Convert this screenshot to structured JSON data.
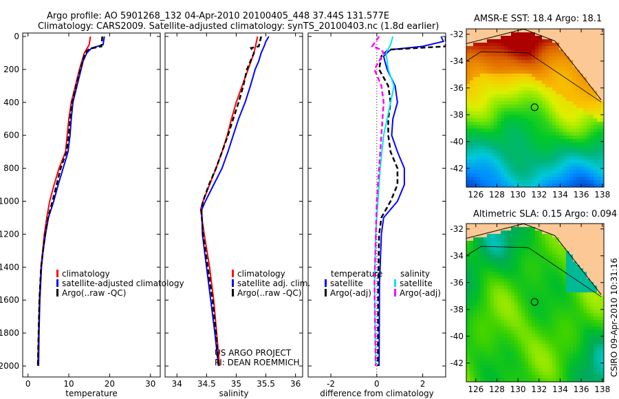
{
  "header": {
    "line1": "Argo profile: AO 5901268_132 04-Apr-2010 20100405_448 37.44S 131.577E",
    "line2": "Climatology: CARS2009. Satellite-adjusted climatology: synTS_20100403.nc (1.8d earlier)"
  },
  "credit_project": "US ARGO PROJECT",
  "credit_pi": "PI: DEAN ROEMMICH",
  "credit_csiro": "CSIRO 09-Apr-2010 10:31:16",
  "colors": {
    "climatology": "#ff0000",
    "satellite": "#0000ff",
    "argo": "#000000",
    "sal_satellite": "#00e5ee",
    "sal_argo": "#ff00ff",
    "land": "#fcc896"
  },
  "chart_data": [
    {
      "type": "line",
      "xlabel": "temperature",
      "ylabel": "depth",
      "xlim": [
        -1.3,
        32.4
      ],
      "ylim": [
        2065,
        0
      ],
      "xticks": [
        "0",
        "10",
        "20",
        "30"
      ],
      "xtick_values": [
        0,
        10,
        20,
        30
      ],
      "yticks": [
        "0",
        "200",
        "400",
        "600",
        "800",
        "1000",
        "1200",
        "1400",
        "1600",
        "1800",
        "2000"
      ],
      "ytick_values": [
        0,
        200,
        400,
        600,
        800,
        1000,
        1200,
        1400,
        1600,
        1800,
        2000
      ],
      "legend": [
        "climatology",
        "satellite-adjusted climatology",
        "Argo(..raw -QC)"
      ],
      "series": [
        {
          "name": "climatology",
          "color": "#ff0000",
          "dash": false,
          "depth": [
            0,
            50,
            100,
            200,
            300,
            400,
            500,
            600,
            700,
            800,
            900,
            1000,
            1100,
            1200,
            1300,
            1400,
            1600,
            1800,
            2000
          ],
          "values": [
            15.3,
            15.0,
            13.8,
            12.6,
            11.6,
            10.6,
            10.0,
            9.6,
            9.2,
            7.6,
            6.4,
            5.3,
            4.6,
            4.0,
            3.6,
            3.2,
            2.8,
            2.6,
            2.4
          ]
        },
        {
          "name": "satellite-adjusted climatology",
          "color": "#0000ff",
          "dash": false,
          "depth": [
            0,
            50,
            70,
            100,
            150,
            200,
            300,
            400,
            500,
            600,
            700,
            800,
            900,
            1000,
            1100,
            1200,
            1300,
            1400,
            1600,
            1800,
            2000
          ],
          "values": [
            18.7,
            18.4,
            15.6,
            14.4,
            13.5,
            13.0,
            12.0,
            11.0,
            10.6,
            10.3,
            9.8,
            8.6,
            7.4,
            6.3,
            5.0,
            4.3,
            3.7,
            3.3,
            2.9,
            2.7,
            2.6
          ]
        },
        {
          "name": "Argo(..raw -QC)",
          "color": "#000000",
          "dash": true,
          "depth": [
            0,
            60,
            75,
            100,
            200,
            300,
            400,
            500,
            600,
            700,
            800,
            900,
            1000,
            1100,
            1200,
            1400,
            1600,
            1800,
            2000
          ],
          "values": [
            18.2,
            18.0,
            15.0,
            14.0,
            12.8,
            11.8,
            10.8,
            10.3,
            10.0,
            9.4,
            8.0,
            7.0,
            6.0,
            4.9,
            4.2,
            3.2,
            2.8,
            2.6,
            2.4
          ]
        }
      ]
    },
    {
      "type": "line",
      "xlabel": "salinity",
      "xlim": [
        33.8,
        36.12
      ],
      "ylim": [
        2065,
        0
      ],
      "xticks": [
        "34",
        "34.5",
        "35",
        "35.5",
        "36"
      ],
      "xtick_values": [
        34,
        34.5,
        35,
        35.5,
        36
      ],
      "legend": [
        "climatology",
        "satellite adj. clim.",
        "Argo(..raw -QC)"
      ],
      "series": [
        {
          "name": "climatology",
          "color": "#ff0000",
          "dash": false,
          "depth": [
            0,
            100,
            200,
            300,
            400,
            500,
            600,
            700,
            800,
            900,
            1000,
            1050,
            1200,
            1400,
            1600,
            1800,
            2000
          ],
          "values": [
            35.36,
            35.3,
            35.2,
            35.1,
            35.0,
            34.92,
            34.85,
            34.76,
            34.66,
            34.55,
            34.44,
            34.4,
            34.46,
            34.55,
            34.62,
            34.67,
            34.72
          ]
        },
        {
          "name": "satellite adj. clim.",
          "color": "#0000ff",
          "dash": false,
          "depth": [
            0,
            30,
            60,
            100,
            150,
            200,
            300,
            400,
            500,
            600,
            700,
            800,
            900,
            1000,
            1050,
            1200,
            1400,
            1600,
            1800,
            2000
          ],
          "values": [
            35.55,
            35.5,
            35.47,
            35.42,
            35.38,
            35.32,
            35.24,
            35.15,
            35.04,
            34.95,
            34.86,
            34.76,
            34.62,
            34.48,
            34.42,
            34.43,
            34.5,
            34.57,
            34.64,
            34.7
          ]
        },
        {
          "name": "Argo(..raw -QC)",
          "color": "#000000",
          "dash": true,
          "depth": [
            0,
            60,
            70,
            100,
            200,
            300,
            400,
            500,
            600,
            700,
            800,
            900,
            1000,
            1050,
            1200,
            1400,
            1600,
            1800,
            2000
          ],
          "values": [
            35.42,
            35.38,
            35.25,
            35.3,
            35.18,
            35.12,
            35.04,
            34.95,
            34.86,
            34.76,
            34.66,
            34.54,
            34.44,
            34.41,
            34.44,
            34.52,
            34.6,
            34.66,
            34.7
          ]
        }
      ]
    },
    {
      "type": "line",
      "xlabel": "difference from climatology",
      "xlim": [
        -2.99,
        3.0
      ],
      "ylim": [
        2065,
        0
      ],
      "xticks": [
        "-2",
        "0",
        "2"
      ],
      "xtick_values": [
        -2,
        0,
        2
      ],
      "legend_temperature_title": "temperature",
      "legend_salinity_title": "salinity",
      "legend": [
        "satellite",
        "Argo(-adj)",
        "satellite",
        "Argo(-adj)"
      ],
      "series": [
        {
          "name": "temperature satellite",
          "color": "#0000ff",
          "dash": false,
          "depth": [
            0,
            30,
            60,
            80,
            120,
            150,
            200,
            300,
            400,
            500,
            600,
            700,
            800,
            900,
            1000,
            1100,
            1200,
            1500,
            2000
          ],
          "values": [
            2.8,
            2.9,
            2.0,
            0.6,
            0.3,
            0.35,
            0.45,
            0.8,
            0.9,
            0.7,
            0.65,
            0.9,
            1.2,
            1.2,
            0.9,
            0.3,
            0.2,
            0.12,
            0.1
          ]
        },
        {
          "name": "temperature Argo(-adj)",
          "color": "#000000",
          "dash": true,
          "depth": [
            0,
            60,
            80,
            120,
            200,
            300,
            400,
            500,
            600,
            700,
            800,
            900,
            1000,
            1100,
            1200,
            1500,
            2000
          ],
          "values": [
            3.0,
            3.0,
            0.5,
            0.2,
            0.1,
            0.5,
            0.6,
            0.5,
            0.5,
            0.6,
            0.9,
            0.9,
            0.6,
            0.2,
            0.1,
            0.06,
            0.05
          ]
        },
        {
          "name": "salinity satellite",
          "color": "#00e5ee",
          "dash": false,
          "depth": [
            0,
            50,
            100,
            200,
            300,
            400,
            500,
            600,
            800,
            1000,
            1200,
            1500,
            2000
          ],
          "values": [
            0.7,
            0.6,
            0.4,
            0.5,
            0.75,
            0.6,
            0.45,
            0.3,
            0.15,
            0.05,
            -0.05,
            -0.1,
            -0.05
          ]
        },
        {
          "name": "salinity Argo(-adj)",
          "color": "#ff00ff",
          "dash": true,
          "depth": [
            0,
            60,
            80,
            100,
            200,
            300,
            400,
            600,
            800,
            1000,
            1500,
            2000
          ],
          "values": [
            0.1,
            -0.2,
            0.2,
            0.3,
            -0.1,
            0.2,
            0.3,
            0.2,
            0.1,
            0.0,
            -0.1,
            -0.05
          ]
        }
      ]
    },
    {
      "type": "heatmap",
      "title": "AMSR-E SST: 18.4 Argo: 18.1",
      "xticks": [
        "126",
        "128",
        "130",
        "132",
        "134",
        "136",
        "138"
      ],
      "xtick_values": [
        126,
        128,
        130,
        132,
        134,
        136,
        138
      ],
      "yticks": [
        "-32",
        "-34",
        "-36",
        "-38",
        "-40",
        "-42"
      ],
      "ytick_values": [
        32,
        34,
        36,
        38,
        40,
        42
      ],
      "xlim": [
        125.1,
        138
      ],
      "ylim": [
        31.6,
        43.4
      ],
      "argo_position": {
        "lon": 131.577,
        "lat": 37.44
      }
    },
    {
      "type": "heatmap",
      "title": "Altimetric SLA: 0.15 Argo: 0.094",
      "xticks": [
        "126",
        "128",
        "130",
        "132",
        "134",
        "136",
        "138"
      ],
      "xtick_values": [
        126,
        128,
        130,
        132,
        134,
        136,
        138
      ],
      "yticks": [
        "-32",
        "-34",
        "-36",
        "-38",
        "-40",
        "-42"
      ],
      "ytick_values": [
        32,
        34,
        36,
        38,
        40,
        42
      ],
      "xlim": [
        125.1,
        138
      ],
      "ylim": [
        31.6,
        43.4
      ],
      "argo_position": {
        "lon": 131.577,
        "lat": 37.44
      }
    }
  ]
}
